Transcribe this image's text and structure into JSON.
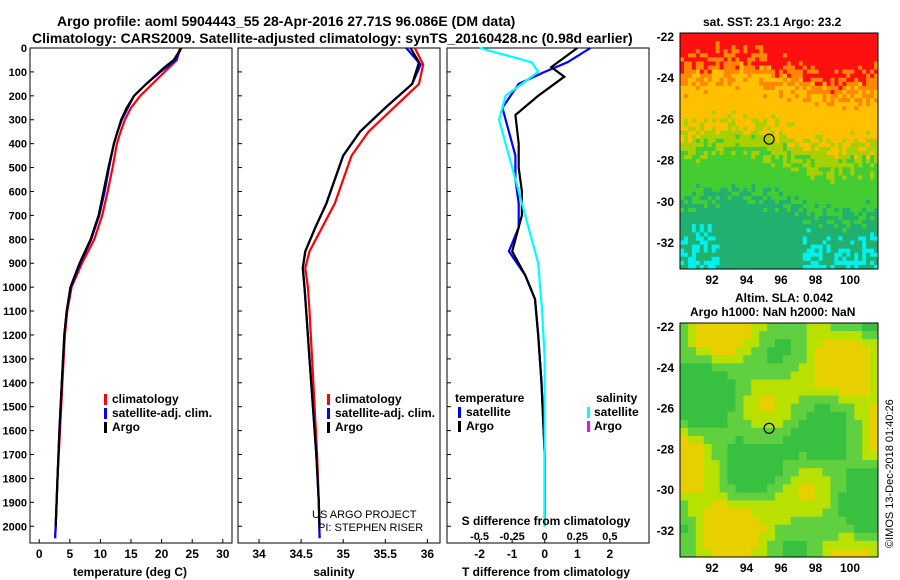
{
  "title": {
    "line1": "Argo profile: aoml 5904443_55 28-Apr-2016 27.71S 96.086E (DM data)",
    "line2": "Climatology: CARS2009. Satellite-adjusted climatology: synTS_20160428.nc (0.98d earlier)"
  },
  "sst_title": "sat. SST: 23.1 Argo: 23.2",
  "sla_title": {
    "line1": "Altim. SLA: 0.042",
    "line2": "Argo h1000: NaN h2000: NaN"
  },
  "credit": {
    "line1": "US ARGO PROJECT",
    "line2": "PI: STEPHEN RISER"
  },
  "stamp": "©IMOS 13-Dec-2018 01:40:26",
  "colors": {
    "climatology": "#ff0000",
    "satellite": "#0000ff",
    "argo": "#000000",
    "satellite_s": "#00ffff",
    "argo_s": "#ff00ff"
  },
  "chart_data": [
    {
      "type": "line",
      "xlabel": "temperature (deg C)",
      "ylabel": "",
      "xlim": [
        -1.5,
        31.5
      ],
      "ylim": [
        2070,
        0
      ],
      "xticks": [
        "0",
        "5",
        "10",
        "15",
        "20",
        "25",
        "30"
      ],
      "yticks": [
        "0",
        "100",
        "200",
        "300",
        "400",
        "500",
        "600",
        "700",
        "800",
        "900",
        "1000",
        "1100",
        "1200",
        "1300",
        "1400",
        "1500",
        "1600",
        "1700",
        "1800",
        "1900",
        "2000"
      ],
      "legend": [
        "climatology",
        "satellite-adj. clim.",
        "Argo"
      ],
      "legend_position": "lower-center",
      "series": [
        {
          "name": "climatology",
          "color": "#ff0000",
          "points": [
            [
              23.0,
              0
            ],
            [
              22.5,
              50
            ],
            [
              20.5,
              100
            ],
            [
              18.5,
              150
            ],
            [
              16.5,
              200
            ],
            [
              15,
              250
            ],
            [
              14,
              300
            ],
            [
              13.3,
              350
            ],
            [
              12.7,
              400
            ],
            [
              12,
              500
            ],
            [
              11.2,
              600
            ],
            [
              10.3,
              700
            ],
            [
              9,
              800
            ],
            [
              7,
              900
            ],
            [
              5.3,
              1000
            ],
            [
              4.6,
              1100
            ],
            [
              4.2,
              1200
            ],
            [
              3.8,
              1400
            ],
            [
              3.4,
              1600
            ],
            [
              3.0,
              1800
            ],
            [
              2.7,
              2000
            ],
            [
              2.6,
              2050
            ]
          ]
        },
        {
          "name": "satellite-adj. clim.",
          "color": "#0000ff",
          "points": [
            [
              23.2,
              0
            ],
            [
              22.3,
              50
            ],
            [
              19.8,
              100
            ],
            [
              17.5,
              150
            ],
            [
              15.5,
              200
            ],
            [
              14.5,
              250
            ],
            [
              13.5,
              300
            ],
            [
              12.8,
              350
            ],
            [
              12.2,
              400
            ],
            [
              11.4,
              500
            ],
            [
              10.7,
              600
            ],
            [
              9.8,
              700
            ],
            [
              8.5,
              800
            ],
            [
              6.7,
              900
            ],
            [
              5.2,
              1000
            ],
            [
              4.5,
              1100
            ],
            [
              4.1,
              1200
            ],
            [
              3.7,
              1400
            ],
            [
              3.3,
              1600
            ],
            [
              3.0,
              1800
            ],
            [
              2.7,
              2000
            ],
            [
              2.6,
              2050
            ]
          ]
        },
        {
          "name": "Argo",
          "color": "#000000",
          "points": [
            [
              23.2,
              0
            ],
            [
              22.0,
              50
            ],
            [
              20.5,
              80
            ],
            [
              17.5,
              150
            ],
            [
              15.5,
              200
            ],
            [
              14.3,
              250
            ],
            [
              13.4,
              300
            ],
            [
              12.8,
              350
            ],
            [
              12.2,
              400
            ],
            [
              11.3,
              500
            ],
            [
              10.5,
              600
            ],
            [
              9.7,
              700
            ],
            [
              8.4,
              800
            ],
            [
              6.6,
              900
            ],
            [
              5.1,
              1000
            ],
            [
              4.5,
              1100
            ],
            [
              4.1,
              1200
            ],
            [
              3.7,
              1400
            ],
            [
              3.3,
              1600
            ],
            [
              3.0,
              1800
            ],
            [
              2.7,
              2000
            ]
          ]
        }
      ]
    },
    {
      "type": "line",
      "xlabel": "salinity",
      "xlim": [
        33.75,
        36.15
      ],
      "ylim": [
        2070,
        0
      ],
      "xticks": [
        "34",
        "34.5",
        "35",
        "35.5",
        "36"
      ],
      "legend": [
        "climatology",
        "satellite-adj. clim.",
        "Argo"
      ],
      "legend_position": "lower-right",
      "series": [
        {
          "name": "climatology",
          "color": "#ff0000",
          "points": [
            [
              35.85,
              0
            ],
            [
              35.95,
              70
            ],
            [
              35.9,
              150
            ],
            [
              35.6,
              250
            ],
            [
              35.3,
              350
            ],
            [
              35.1,
              450
            ],
            [
              35.0,
              550
            ],
            [
              34.9,
              650
            ],
            [
              34.75,
              750
            ],
            [
              34.6,
              850
            ],
            [
              34.55,
              920
            ],
            [
              34.58,
              1000
            ],
            [
              34.6,
              1100
            ],
            [
              34.63,
              1300
            ],
            [
              34.66,
              1500
            ],
            [
              34.69,
              1700
            ],
            [
              34.71,
              1900
            ],
            [
              34.72,
              2050
            ]
          ]
        },
        {
          "name": "satellite-adj. clim.",
          "color": "#0000ff",
          "points": [
            [
              35.75,
              0
            ],
            [
              35.92,
              70
            ],
            [
              35.82,
              150
            ],
            [
              35.5,
              250
            ],
            [
              35.2,
              350
            ],
            [
              35.0,
              450
            ],
            [
              34.9,
              550
            ],
            [
              34.8,
              650
            ],
            [
              34.67,
              750
            ],
            [
              34.55,
              850
            ],
            [
              34.52,
              920
            ],
            [
              34.54,
              1000
            ],
            [
              34.56,
              1100
            ],
            [
              34.6,
              1300
            ],
            [
              34.64,
              1500
            ],
            [
              34.68,
              1700
            ],
            [
              34.71,
              1900
            ],
            [
              34.72,
              2050
            ]
          ]
        },
        {
          "name": "Argo",
          "color": "#000000",
          "points": [
            [
              35.8,
              0
            ],
            [
              35.9,
              60
            ],
            [
              35.82,
              150
            ],
            [
              35.5,
              250
            ],
            [
              35.2,
              350
            ],
            [
              35.0,
              450
            ],
            [
              34.9,
              550
            ],
            [
              34.8,
              650
            ],
            [
              34.67,
              750
            ],
            [
              34.55,
              850
            ],
            [
              34.52,
              920
            ],
            [
              34.54,
              1000
            ],
            [
              34.56,
              1100
            ],
            [
              34.6,
              1300
            ],
            [
              34.64,
              1500
            ],
            [
              34.68,
              1700
            ],
            [
              34.71,
              1900
            ],
            [
              34.72,
              2000
            ]
          ]
        }
      ]
    },
    {
      "type": "line",
      "xlabel": "T difference from climatology",
      "title": "S difference from climatology",
      "xlim": [
        -3,
        3.2
      ],
      "xlim_s": [
        -0.75,
        0.8
      ],
      "ylim": [
        2070,
        0
      ],
      "xticks": [
        "-2",
        "-1",
        "0",
        "1",
        "2"
      ],
      "xticks_s": [
        "-0.5",
        "-0.25",
        "0",
        "0.25",
        "0.5"
      ],
      "legend_groups": [
        {
          "title": "temperature",
          "items": [
            "satellite",
            "Argo"
          ]
        },
        {
          "title": "salinity",
          "items": [
            "satellite",
            "Argo"
          ]
        }
      ],
      "series": [
        {
          "name": "temperature satellite",
          "color": "#0000ff",
          "points": [
            [
              1.4,
              0
            ],
            [
              0.7,
              60
            ],
            [
              0.0,
              100
            ],
            [
              -0.8,
              150
            ],
            [
              -1.3,
              250
            ],
            [
              -1.1,
              350
            ],
            [
              -0.9,
              450
            ],
            [
              -0.9,
              550
            ],
            [
              -0.8,
              650
            ],
            [
              -0.8,
              750
            ],
            [
              -1.1,
              850
            ],
            [
              -0.6,
              950
            ],
            [
              -0.3,
              1050
            ],
            [
              -0.2,
              1200
            ],
            [
              -0.1,
              1400
            ],
            [
              0,
              1700
            ],
            [
              0,
              2000
            ]
          ]
        },
        {
          "name": "temperature Argo",
          "color": "#000000",
          "points": [
            [
              1.0,
              0
            ],
            [
              0.5,
              50
            ],
            [
              0.2,
              80
            ],
            [
              0.6,
              120
            ],
            [
              -0.2,
              200
            ],
            [
              -0.9,
              280
            ],
            [
              -0.8,
              400
            ],
            [
              -0.8,
              500
            ],
            [
              -0.7,
              600
            ],
            [
              -0.7,
              700
            ],
            [
              -1.0,
              850
            ],
            [
              -0.6,
              950
            ],
            [
              -0.3,
              1050
            ],
            [
              -0.2,
              1200
            ],
            [
              -0.1,
              1400
            ],
            [
              0,
              1700
            ],
            [
              0,
              2000
            ]
          ]
        },
        {
          "name": "salinity satellite",
          "color": "#00ffff",
          "points": [
            [
              -0.5,
              0
            ],
            [
              -0.1,
              60
            ],
            [
              -0.05,
              100
            ],
            [
              -0.3,
              200
            ],
            [
              -0.35,
              300
            ],
            [
              -0.3,
              400
            ],
            [
              -0.25,
              500
            ],
            [
              -0.2,
              600
            ],
            [
              -0.15,
              700
            ],
            [
              -0.1,
              800
            ],
            [
              -0.05,
              900
            ],
            [
              -0.02,
              1100
            ],
            [
              0,
              1300
            ],
            [
              0,
              1600
            ],
            [
              0,
              2000
            ]
          ]
        }
      ]
    }
  ],
  "sst_map": {
    "x_ticks": [
      "92",
      "94",
      "96",
      "98",
      "100"
    ],
    "y_ticks": [
      "-22",
      "-24",
      "-26",
      "-28",
      "-30",
      "-32"
    ]
  },
  "sla_map": {
    "x_ticks": [
      "92",
      "94",
      "96",
      "98",
      "100"
    ],
    "y_ticks": [
      "-22",
      "-24",
      "-26",
      "-28",
      "-30",
      "-32"
    ]
  }
}
